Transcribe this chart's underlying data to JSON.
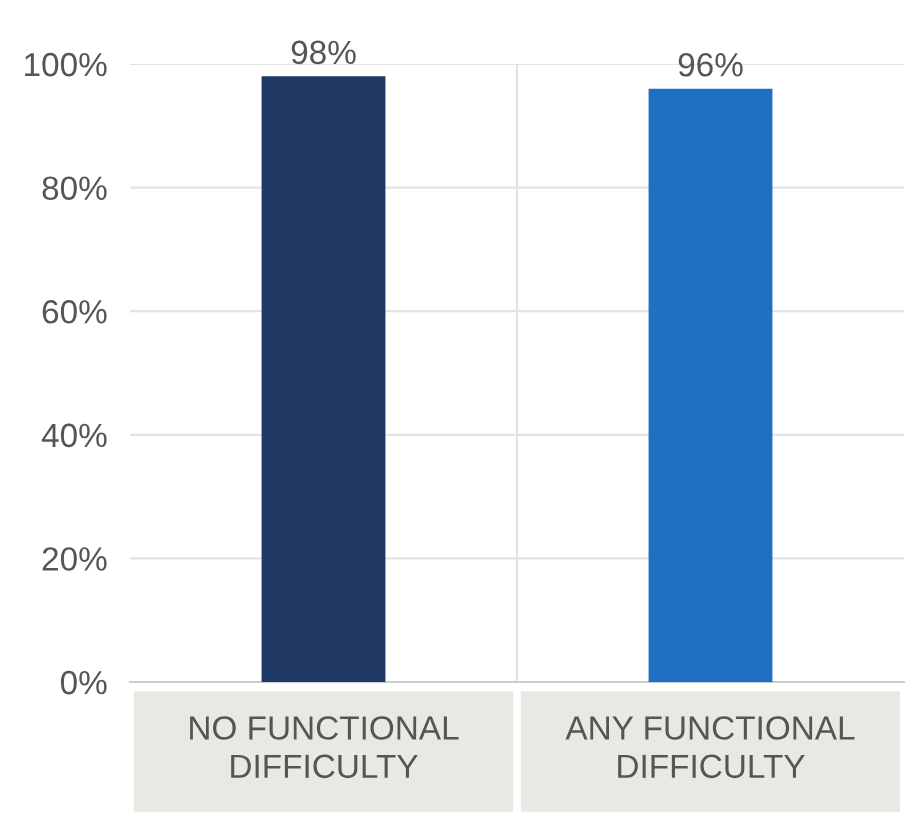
{
  "chart_data": {
    "type": "bar",
    "categories": [
      "NO FUNCTIONAL\nDIFFICULTY",
      "ANY FUNCTIONAL\nDIFFICULTY"
    ],
    "values": [
      98,
      96
    ],
    "colors": [
      "#1f3864",
      "#1f70c1"
    ],
    "value_labels": [
      "98%",
      "96%"
    ],
    "ylim": [
      0,
      100
    ],
    "yticks": [
      {
        "value": 0,
        "label": "0%"
      },
      {
        "value": 20,
        "label": "20%"
      },
      {
        "value": 40,
        "label": "40%"
      },
      {
        "value": 60,
        "label": "60%"
      },
      {
        "value": 80,
        "label": "80%"
      },
      {
        "value": 100,
        "label": "100%"
      }
    ],
    "grid": "y",
    "legend": false
  }
}
